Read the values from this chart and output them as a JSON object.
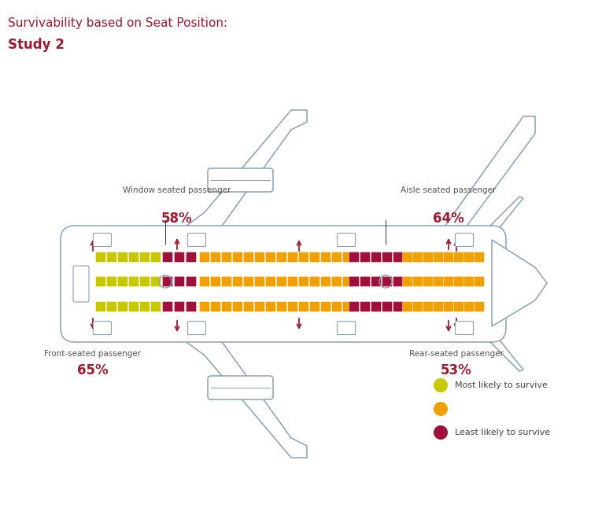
{
  "title_line1": "Survivability based on Seat Position:",
  "title_line2": "Study 2",
  "title_color": "#9B1B30",
  "title_line1_size": 11,
  "title_line2_size": 12,
  "bg_color": "#FFFFFF",
  "plane_color": "#8BA0B4",
  "seat_yellow_green": "#C8C800",
  "seat_yellow": "#F0A000",
  "seat_dark_red": "#A0103A",
  "annot_color": "#555555",
  "legend_items": [
    {
      "label": "Most likely to survive",
      "color": "#C8C800"
    },
    {
      "label": "",
      "color": "#F0A000"
    },
    {
      "label": "Least likely to survive",
      "color": "#A0103A"
    }
  ]
}
